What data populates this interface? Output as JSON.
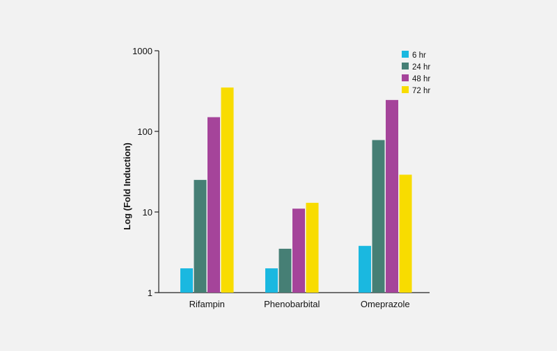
{
  "chart_data": {
    "type": "bar",
    "title": "",
    "xlabel": "",
    "ylabel": "Log (Fold Induction)",
    "yscale": "log",
    "ylim": [
      1,
      1000
    ],
    "yticks": [
      1,
      10,
      100,
      1000
    ],
    "ytick_labels": [
      "1",
      "10",
      "100",
      "1000"
    ],
    "grid": false,
    "legend_position": "top-right",
    "categories": [
      "Rifampin",
      "Phenobarbital",
      "Omeprazole"
    ],
    "series": [
      {
        "name": "6 hr",
        "color": "#1ab8e0",
        "values": [
          2.0,
          2.0,
          3.8
        ]
      },
      {
        "name": "24 hr",
        "color": "#467f75",
        "values": [
          25,
          3.5,
          78
        ]
      },
      {
        "name": "48 hr",
        "color": "#a5449a",
        "values": [
          150,
          11,
          245
        ]
      },
      {
        "name": "72 hr",
        "color": "#f8dc00",
        "values": [
          350,
          13,
          29
        ]
      }
    ]
  }
}
